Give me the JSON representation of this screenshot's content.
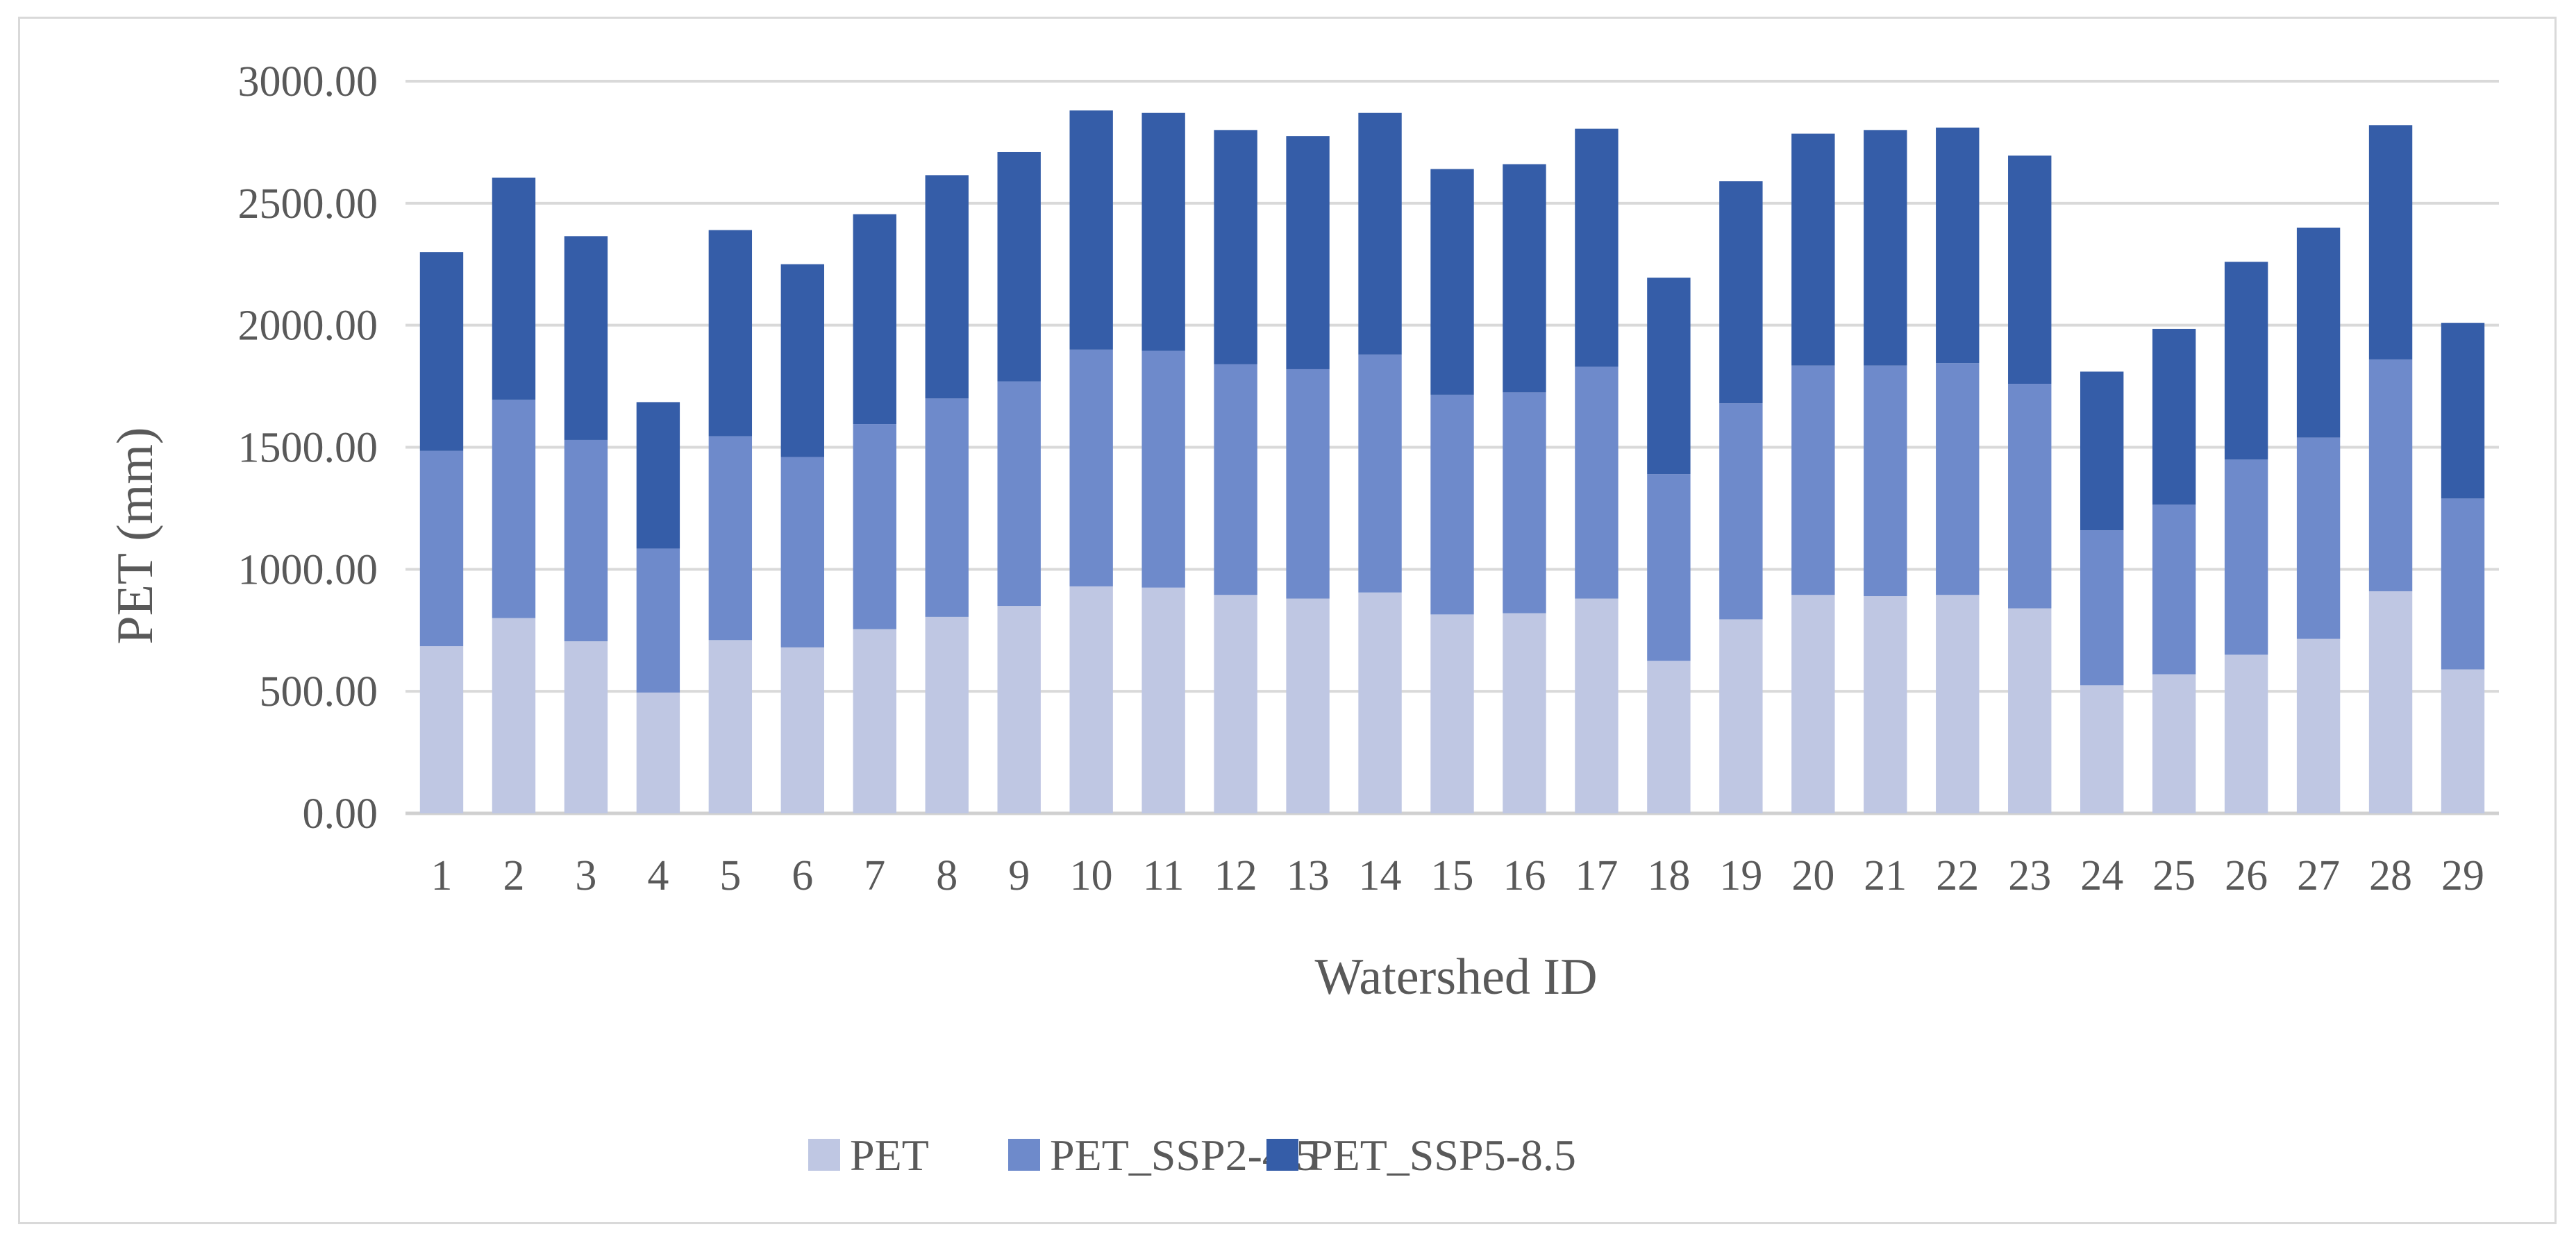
{
  "chart_data": {
    "type": "bar",
    "stacked": true,
    "title": "",
    "xlabel": "Watershed ID",
    "ylabel": "PET (mm)",
    "ylim": [
      0,
      3000
    ],
    "ytick_labels": [
      "0.00",
      "500.00",
      "1000.00",
      "1500.00",
      "2000.00",
      "2500.00",
      "3000.00"
    ],
    "grid": true,
    "legend_position": "bottom",
    "categories": [
      "1",
      "2",
      "3",
      "4",
      "5",
      "6",
      "7",
      "8",
      "9",
      "10",
      "11",
      "12",
      "13",
      "14",
      "15",
      "16",
      "17",
      "18",
      "19",
      "20",
      "21",
      "22",
      "23",
      "24",
      "25",
      "26",
      "27",
      "28",
      "29"
    ],
    "series": [
      {
        "name": "PET",
        "color": "#bfc7e3",
        "values": [
          685,
          800,
          705,
          495,
          710,
          680,
          755,
          805,
          850,
          930,
          925,
          895,
          880,
          905,
          815,
          820,
          880,
          625,
          795,
          895,
          890,
          895,
          840,
          525,
          570,
          650,
          715,
          910,
          590
        ]
      },
      {
        "name": "PET_SSP2-4.5",
        "color": "#6e8acb",
        "values": [
          800,
          895,
          825,
          590,
          835,
          780,
          840,
          895,
          920,
          970,
          970,
          945,
          940,
          975,
          900,
          905,
          950,
          765,
          885,
          940,
          945,
          950,
          920,
          635,
          695,
          800,
          825,
          950,
          700
        ]
      },
      {
        "name": "PET_SSP5-8.5",
        "color": "#355da8",
        "values": [
          815,
          910,
          835,
          600,
          845,
          790,
          860,
          915,
          940,
          980,
          975,
          960,
          955,
          990,
          925,
          935,
          975,
          805,
          910,
          950,
          965,
          965,
          935,
          650,
          720,
          810,
          860,
          960,
          720
        ]
      }
    ]
  }
}
